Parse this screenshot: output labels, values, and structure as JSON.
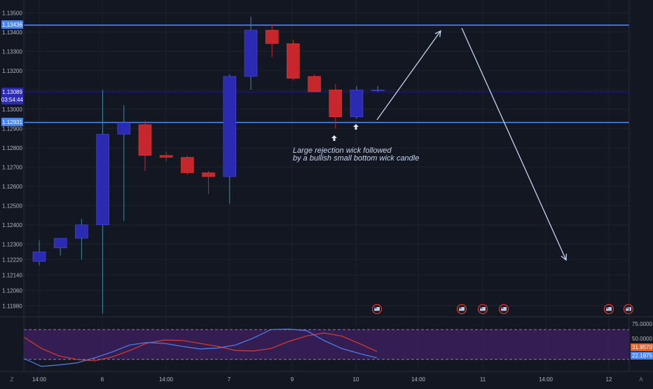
{
  "chart_data": {
    "type": "candlestick",
    "main": {
      "y_range": [
        1.1193,
        1.1353
      ],
      "y_ticks": [
        "1.13500",
        "1.13400",
        "1.13300",
        "1.13200",
        "1.13100",
        "1.13000",
        "1.12900",
        "1.12800",
        "1.12700",
        "1.12600",
        "1.12500",
        "1.12400",
        "1.12300",
        "1.12220",
        "1.12140",
        "1.12060",
        "1.11980"
      ],
      "candles": [
        {
          "o": 1.1221,
          "h": 1.1232,
          "l": 1.1219,
          "c": 1.1226
        },
        {
          "o": 1.1228,
          "h": 1.1232,
          "l": 1.1224,
          "c": 1.1233
        },
        {
          "o": 1.1233,
          "h": 1.1243,
          "l": 1.1222,
          "c": 1.124
        },
        {
          "o": 1.124,
          "h": 1.131,
          "l": 1.1194,
          "c": 1.1287
        },
        {
          "o": 1.1287,
          "h": 1.1302,
          "l": 1.1242,
          "c": 1.1293
        },
        {
          "o": 1.1292,
          "h": 1.1294,
          "l": 1.1268,
          "c": 1.1276
        },
        {
          "o": 1.1276,
          "h": 1.1278,
          "l": 1.1273,
          "c": 1.1275
        },
        {
          "o": 1.1275,
          "h": 1.1276,
          "l": 1.1266,
          "c": 1.1267
        },
        {
          "o": 1.1267,
          "h": 1.1268,
          "l": 1.1256,
          "c": 1.1265
        },
        {
          "o": 1.1265,
          "h": 1.1318,
          "l": 1.1251,
          "c": 1.1317
        },
        {
          "o": 1.1317,
          "h": 1.1348,
          "l": 1.131,
          "c": 1.1341
        },
        {
          "o": 1.1341,
          "h": 1.1344,
          "l": 1.1327,
          "c": 1.1334
        },
        {
          "o": 1.1334,
          "h": 1.1336,
          "l": 1.1315,
          "c": 1.1316
        },
        {
          "o": 1.1317,
          "h": 1.1318,
          "l": 1.1309,
          "c": 1.1309
        },
        {
          "o": 1.131,
          "h": 1.1313,
          "l": 1.129,
          "c": 1.1296
        },
        {
          "o": 1.1296,
          "h": 1.1312,
          "l": 1.1295,
          "c": 1.131
        },
        {
          "o": 1.131,
          "h": 1.1312,
          "l": 1.1309,
          "c": 1.131
        }
      ],
      "horizontal_lines": [
        {
          "label": "1.13436",
          "value": 1.13436
        },
        {
          "label": "1.12931",
          "value": 1.12931
        }
      ],
      "current_price": {
        "label": "1.13089",
        "value": 1.13089,
        "countdown": "03:54:44"
      },
      "annotation": [
        "Large rejection wick followed",
        "by a bullish small bottom wick candle"
      ],
      "x_labels": [
        "14:00",
        "6",
        "14:00",
        "7",
        "9",
        "10",
        "14:00",
        "11",
        "14:00",
        "12"
      ],
      "colors": {
        "up": "#2a2ab3",
        "down": "#c8262d",
        "level": "#4a84f0",
        "drawing": "#c3d3ec",
        "background": "#131722"
      }
    },
    "oscillator": {
      "y_ticks": [
        "75.0000",
        "50.0000"
      ],
      "labels": {
        "orange": "31.9570",
        "blue": "22.1975"
      },
      "bands": [
        80,
        20
      ],
      "y_range": [
        0,
        100
      ],
      "series": [
        {
          "color": "#e0392b",
          "values": [
            65,
            42,
            27,
            20,
            17,
            25,
            38,
            53,
            59,
            58,
            52,
            46,
            38,
            37,
            42,
            56,
            67,
            73,
            67,
            52,
            36
          ]
        },
        {
          "color": "#4a84f0",
          "values": [
            22,
            6,
            9,
            13,
            23,
            35,
            49,
            54,
            52,
            46,
            41,
            43,
            49,
            63,
            80,
            81,
            78,
            58,
            42,
            32,
            23
          ]
        }
      ]
    }
  }
}
